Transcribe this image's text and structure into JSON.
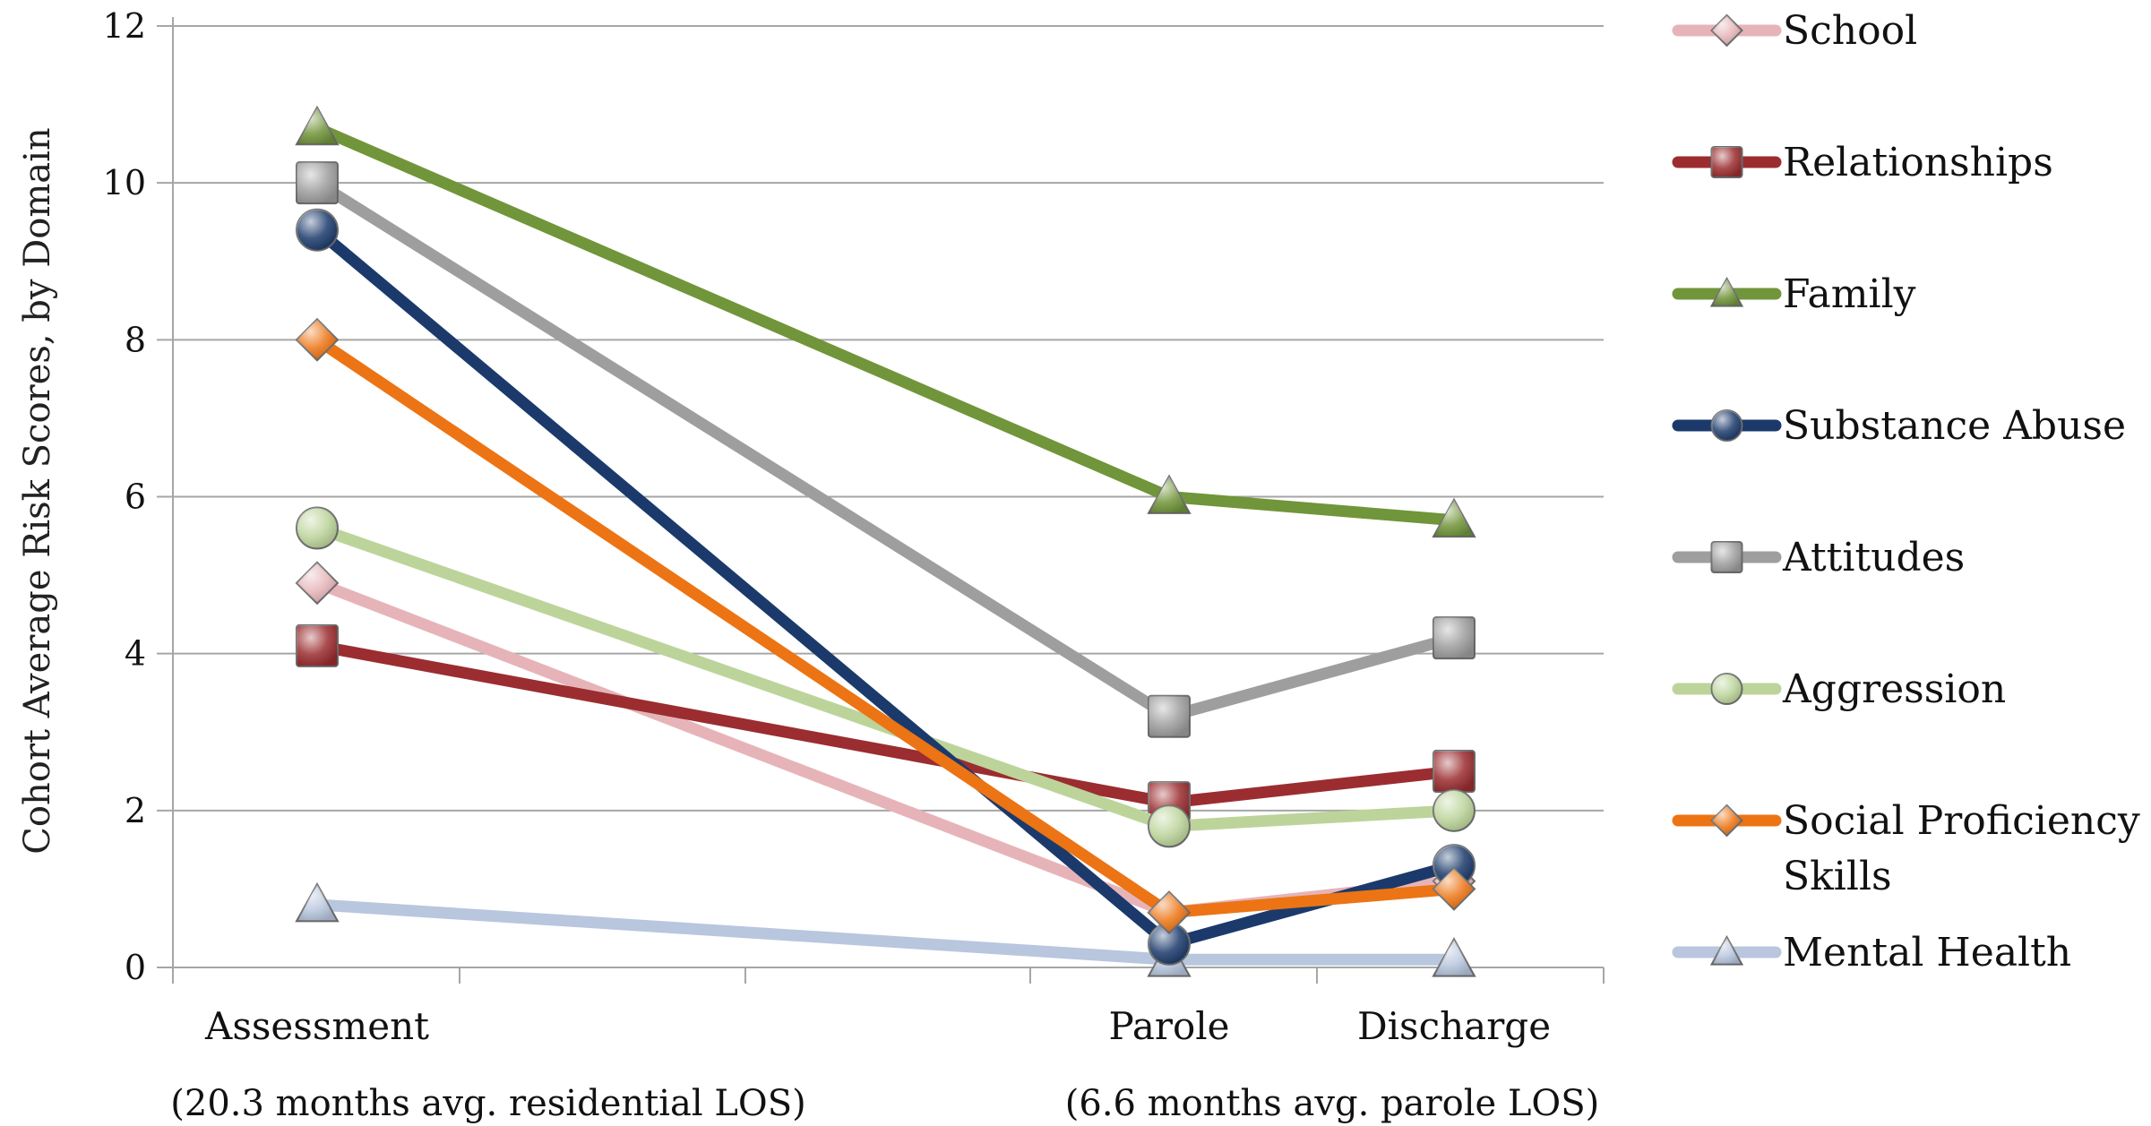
{
  "chart_data": {
    "type": "line",
    "ylabel": "Cohort Average Risk Scores, by Domain",
    "xlabel": "",
    "ylim": [
      0,
      12
    ],
    "yticks": [
      0,
      2,
      4,
      6,
      8,
      10,
      12
    ],
    "ytick_labels": [
      "0",
      "2",
      "4",
      "6",
      "8",
      "10",
      "12"
    ],
    "categories": [
      "Assessment",
      "Parole",
      "Discharge"
    ],
    "category_notes": [
      "(20.3 months avg. residential LOS)",
      "(6.6 months avg. parole LOS)"
    ],
    "grid": true,
    "legend_position": "right",
    "series": [
      {
        "name": "School",
        "legend_lines": [
          "School"
        ],
        "values": [
          4.9,
          0.7,
          1.1
        ],
        "color": "#e6b4b8",
        "marker": "diamond"
      },
      {
        "name": "Relationships",
        "legend_lines": [
          "Relationships"
        ],
        "values": [
          4.1,
          2.1,
          2.5
        ],
        "color": "#9b2d30",
        "marker": "square"
      },
      {
        "name": "Family",
        "legend_lines": [
          "Family"
        ],
        "values": [
          10.7,
          6.0,
          5.7
        ],
        "color": "#71953a",
        "marker": "triangle"
      },
      {
        "name": "Substance Abuse",
        "legend_lines": [
          "Substance Abuse"
        ],
        "values": [
          9.4,
          0.3,
          1.3
        ],
        "color": "#1b3a6b",
        "marker": "circle"
      },
      {
        "name": "Attitudes",
        "legend_lines": [
          "Attitudes"
        ],
        "values": [
          10.0,
          3.2,
          4.2
        ],
        "color": "#9e9e9e",
        "marker": "square"
      },
      {
        "name": "Aggression",
        "legend_lines": [
          "Aggression"
        ],
        "values": [
          5.6,
          1.8,
          2.0
        ],
        "color": "#bcd49a",
        "marker": "circle"
      },
      {
        "name": "Social Proficiency Skills",
        "legend_lines": [
          "Social Proficiency",
          "Skills"
        ],
        "values": [
          8.0,
          0.7,
          1.0
        ],
        "color": "#ec7414",
        "marker": "diamond"
      },
      {
        "name": "Mental Health",
        "legend_lines": [
          "Mental Health"
        ],
        "values": [
          0.8,
          0.1,
          0.1
        ],
        "color": "#b8c6de",
        "marker": "triangle"
      }
    ]
  }
}
